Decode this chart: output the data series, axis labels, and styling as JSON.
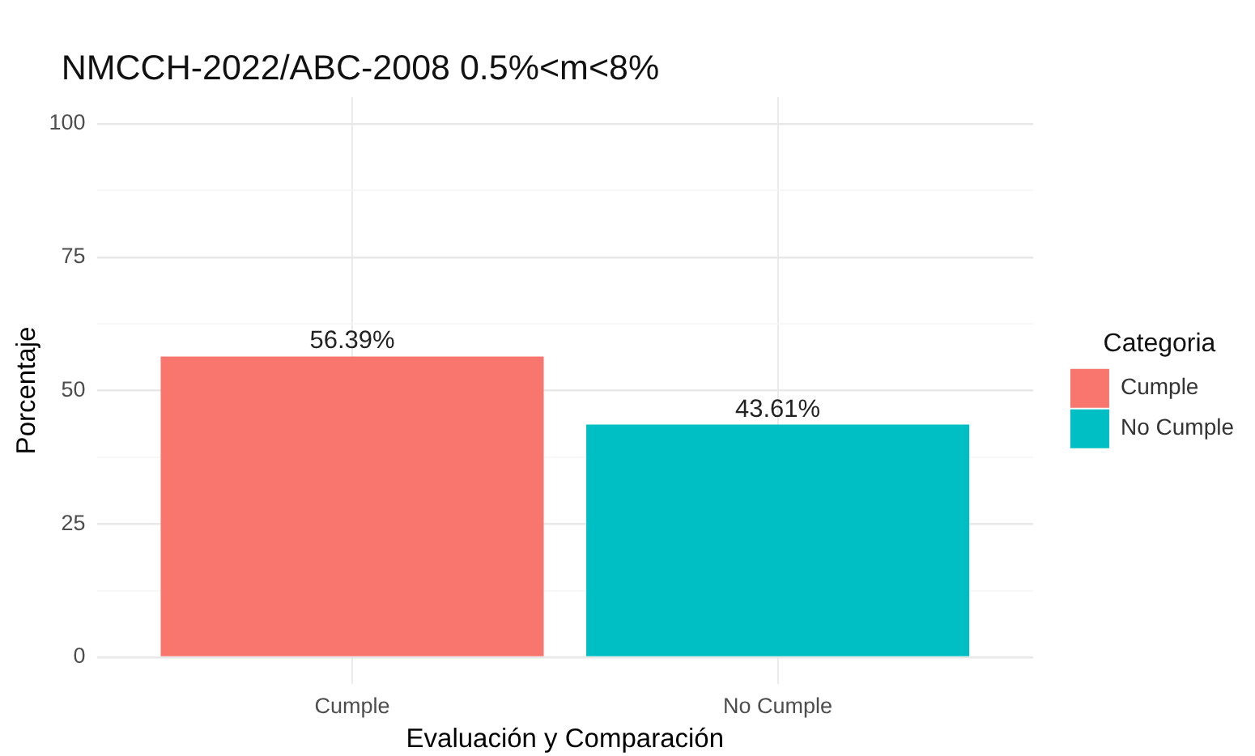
{
  "chart_data": {
    "type": "bar",
    "title": "NMCCH-2022/ABC-2008 0.5%<m<8%",
    "xlabel": "Evaluación y Comparación",
    "ylabel": "Porcentaje",
    "legend_title": "Categoria",
    "categories": [
      "Cumple",
      "No Cumple"
    ],
    "series": [
      {
        "name": "Cumple",
        "color": "#f8766d",
        "values": [
          56.39,
          null
        ],
        "value_labels": [
          "56.39%",
          null
        ]
      },
      {
        "name": "No Cumple",
        "color": "#00bfc4",
        "values": [
          null,
          43.61
        ],
        "value_labels": [
          null,
          "43.61%"
        ]
      }
    ],
    "ylim": [
      -5,
      105
    ],
    "yticks": [
      0,
      {
        "value": 12.5,
        "label": null
      },
      25,
      {
        "value": 37.5,
        "label": null
      },
      50,
      {
        "value": 62.5,
        "label": null
      },
      75,
      {
        "value": 87.5,
        "label": null
      },
      100
    ],
    "grid": true,
    "legend": "right"
  }
}
